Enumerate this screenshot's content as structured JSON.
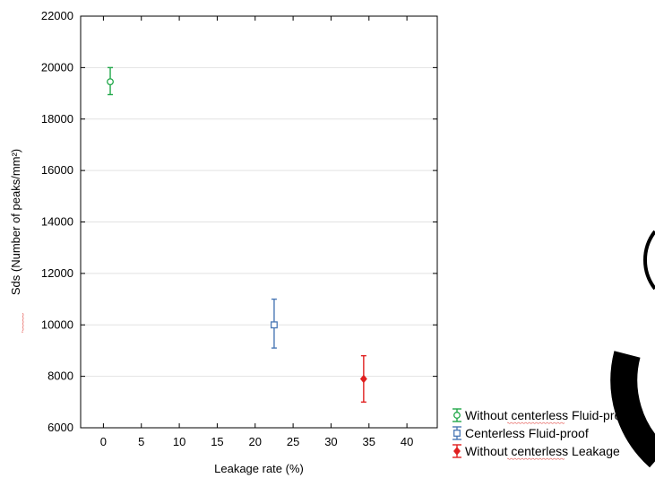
{
  "chart_data": {
    "type": "scatter",
    "xlabel": "Leakage rate (%)",
    "ylabel": "Sds (Number of peaks/mm²)",
    "xlim": [
      -3,
      44
    ],
    "ylim": [
      6000,
      22000
    ],
    "x_ticks": [
      "0",
      "5",
      "10",
      "15",
      "20",
      "25",
      "30",
      "35",
      "40"
    ],
    "y_ticks": [
      "6000",
      "8000",
      "10000",
      "12000",
      "14000",
      "16000",
      "18000",
      "20000",
      "22000"
    ],
    "grid": "horizontal",
    "legend_position": "outside-bottom-right",
    "series": [
      {
        "name": "Without centerless Fluid-proof",
        "color": "#22a84a",
        "marker": "circle",
        "points": [
          {
            "x": 0.9,
            "y": 19450,
            "err_low": 18950,
            "err_high": 20000
          }
        ]
      },
      {
        "name": "Centerless Fluid-proof",
        "color": "#4a78b5",
        "marker": "square",
        "points": [
          {
            "x": 22.5,
            "y": 10000,
            "err_low": 9100,
            "err_high": 11000
          }
        ]
      },
      {
        "name": "Without centerless Leakage",
        "color": "#e02020",
        "marker": "diamond",
        "points": [
          {
            "x": 34.3,
            "y": 7900,
            "err_low": 7000,
            "err_high": 8800
          }
        ]
      }
    ]
  }
}
